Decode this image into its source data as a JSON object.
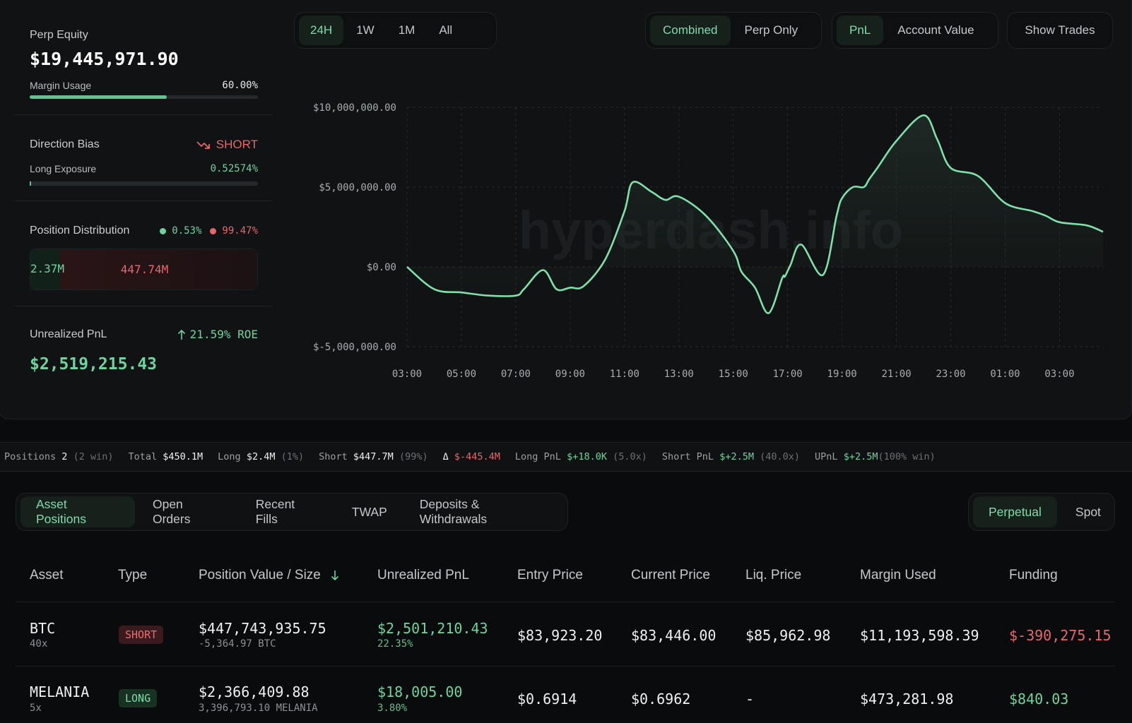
{
  "account": {
    "perp_equity_label": "Perp Equity",
    "perp_equity_value": "$19,445,971.90",
    "margin_usage_label": "Margin Usage",
    "margin_usage_value": "60.00%",
    "margin_usage_fraction": 0.6,
    "direction_bias_label": "Direction Bias",
    "direction_bias_value": "SHORT",
    "long_exposure_label": "Long Exposure",
    "long_exposure_value": "0.52574%",
    "long_exposure_fraction": 0.0052574,
    "position_distribution_label": "Position Distribution",
    "dist_long_pct": "0.53%",
    "dist_short_pct": "99.47%",
    "dist_long_value": "2.37M",
    "dist_short_value": "447.74M",
    "dist_long_fraction": 0.0053,
    "unrealized_pnl_label": "Unrealized PnL",
    "roe_value": "21.59% ROE",
    "unrealized_pnl_value": "$2,519,215.43"
  },
  "chart_controls": {
    "range_tabs": [
      "24H",
      "1W",
      "1M",
      "All"
    ],
    "range_active": "24H",
    "mode_tabs": [
      "Combined",
      "Perp Only"
    ],
    "mode_active": "Combined",
    "metric_tabs": [
      "PnL",
      "Account Value"
    ],
    "metric_active": "PnL",
    "show_trades_label": "Show Trades"
  },
  "watermark": "hyperdash.info",
  "chart_data": {
    "type": "area",
    "title": "",
    "xlabel": "",
    "ylabel": "",
    "x_ticks": [
      "03:00",
      "05:00",
      "07:00",
      "09:00",
      "11:00",
      "13:00",
      "15:00",
      "17:00",
      "19:00",
      "21:00",
      "23:00",
      "01:00",
      "03:00"
    ],
    "y_ticks": [
      "$10,000,000.00",
      "$5,000,000.00",
      "$0.00",
      "$-5,000,000.00"
    ],
    "ylim": [
      -5000000,
      10000000
    ],
    "xlim_hours": [
      0,
      25.6
    ],
    "grid": true,
    "color": "#7ee0ab",
    "x_hours": [
      0,
      1,
      2,
      3,
      4,
      4.3,
      5,
      5.5,
      6,
      6.5,
      7.3,
      8,
      8.3,
      9,
      9.5,
      10,
      11,
      12,
      12.3,
      12.8,
      13.3,
      13.8,
      13.9,
      14.1,
      14.5,
      15.3,
      15.8,
      16,
      16.4,
      16.8,
      17,
      17.3,
      18,
      19,
      19.5,
      20,
      21,
      22,
      23,
      23.5,
      24,
      25,
      25.6
    ],
    "series": [
      {
        "name": "",
        "values": [
          0,
          -1400000,
          -1600000,
          -1800000,
          -1800000,
          -1400000,
          -200000,
          -1400000,
          -1300000,
          -1200000,
          500000,
          3500000,
          5300000,
          4700000,
          4200000,
          4400000,
          3200000,
          1000000,
          -300000,
          -1300000,
          -2900000,
          -700000,
          -600000,
          100000,
          1400000,
          -500000,
          3200000,
          4300000,
          5000000,
          5000000,
          5500000,
          6200000,
          7900000,
          9500000,
          8000000,
          6200000,
          5700000,
          4000000,
          3500000,
          3200000,
          2800000,
          2600000,
          2200000
        ]
      }
    ]
  },
  "stats": {
    "positions_label": "Positions",
    "positions_value": "2",
    "positions_note": "(2 win)",
    "total_label": "Total",
    "total_value": "$450.1M",
    "long_label": "Long",
    "long_value": "$2.4M",
    "long_note": "(1%)",
    "short_label": "Short",
    "short_value": "$447.7M",
    "short_note": "(99%)",
    "delta_symbol": "Δ",
    "delta_value": "$-445.4M",
    "long_pnl_label": "Long PnL",
    "long_pnl_value": "$+18.0K",
    "long_pnl_note": "(5.0x)",
    "short_pnl_label": "Short PnL",
    "short_pnl_value": "$+2.5M",
    "short_pnl_note": "(40.0x)",
    "upnl_label": "UPnL",
    "upnl_value": "$+2.5M",
    "upnl_note": "(100% win)"
  },
  "bottom_tabs": [
    "Asset Positions",
    "Open Orders",
    "Recent Fills",
    "TWAP",
    "Deposits & Withdrawals"
  ],
  "bottom_tab_active": "Asset Positions",
  "market_tabs": [
    "Perpetual",
    "Spot"
  ],
  "market_tab_active": "Perpetual",
  "table": {
    "headers": [
      "Asset",
      "Type",
      "Position Value / Size",
      "Unrealized PnL",
      "Entry Price",
      "Current Price",
      "Liq. Price",
      "Margin Used",
      "Funding"
    ],
    "rows": [
      {
        "asset": "BTC",
        "leverage": "40x",
        "type": "SHORT",
        "position_value": "$447,743,935.75",
        "size": "-5,364.97 BTC",
        "upnl": "$2,501,210.43",
        "upnl_pct": "22.35%",
        "entry": "$83,923.20",
        "current": "$83,446.00",
        "liq": "$85,962.98",
        "margin": "$11,193,598.39",
        "funding": "$-390,275.15"
      },
      {
        "asset": "MELANIA",
        "leverage": "5x",
        "type": "LONG",
        "position_value": "$2,366,409.88",
        "size": "3,396,793.10 MELANIA",
        "upnl": "$18,005.00",
        "upnl_pct": "3.80%",
        "entry": "$0.6914",
        "current": "$0.6962",
        "liq": "-",
        "margin": "$473,281.98",
        "funding": "$840.03"
      }
    ]
  },
  "colors": {
    "accent_green": "#6fd3a0",
    "accent_red": "#e8666b",
    "background": "#0a0b0c",
    "card": "#101213"
  }
}
